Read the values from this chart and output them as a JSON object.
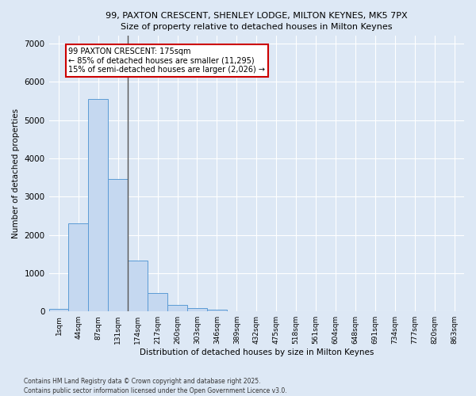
{
  "title_line1": "99, PAXTON CRESCENT, SHENLEY LODGE, MILTON KEYNES, MK5 7PX",
  "title_line2": "Size of property relative to detached houses in Milton Keynes",
  "xlabel": "Distribution of detached houses by size in Milton Keynes",
  "ylabel": "Number of detached properties",
  "categories": [
    "1sqm",
    "44sqm",
    "87sqm",
    "131sqm",
    "174sqm",
    "217sqm",
    "260sqm",
    "303sqm",
    "346sqm",
    "389sqm",
    "432sqm",
    "475sqm",
    "518sqm",
    "561sqm",
    "604sqm",
    "648sqm",
    "691sqm",
    "734sqm",
    "777sqm",
    "820sqm",
    "863sqm"
  ],
  "values": [
    70,
    2300,
    5550,
    3470,
    1320,
    470,
    175,
    90,
    40,
    0,
    0,
    0,
    0,
    0,
    0,
    0,
    0,
    0,
    0,
    0,
    0
  ],
  "bar_color": "#c5d8f0",
  "bar_edge_color": "#5b9bd5",
  "vline_color": "#555555",
  "annotation_text": "99 PAXTON CRESCENT: 175sqm\n← 85% of detached houses are smaller (11,295)\n15% of semi-detached houses are larger (2,026) →",
  "annotation_box_color": "#ffffff",
  "annotation_box_edge_color": "#cc0000",
  "ylim": [
    0,
    7200
  ],
  "yticks": [
    0,
    1000,
    2000,
    3000,
    4000,
    5000,
    6000,
    7000
  ],
  "background_color": "#dde8f5",
  "grid_color": "#ffffff",
  "footer_line1": "Contains HM Land Registry data © Crown copyright and database right 2025.",
  "footer_line2": "Contains public sector information licensed under the Open Government Licence v3.0.",
  "fig_width": 6.0,
  "fig_height": 5.0,
  "dpi": 100
}
